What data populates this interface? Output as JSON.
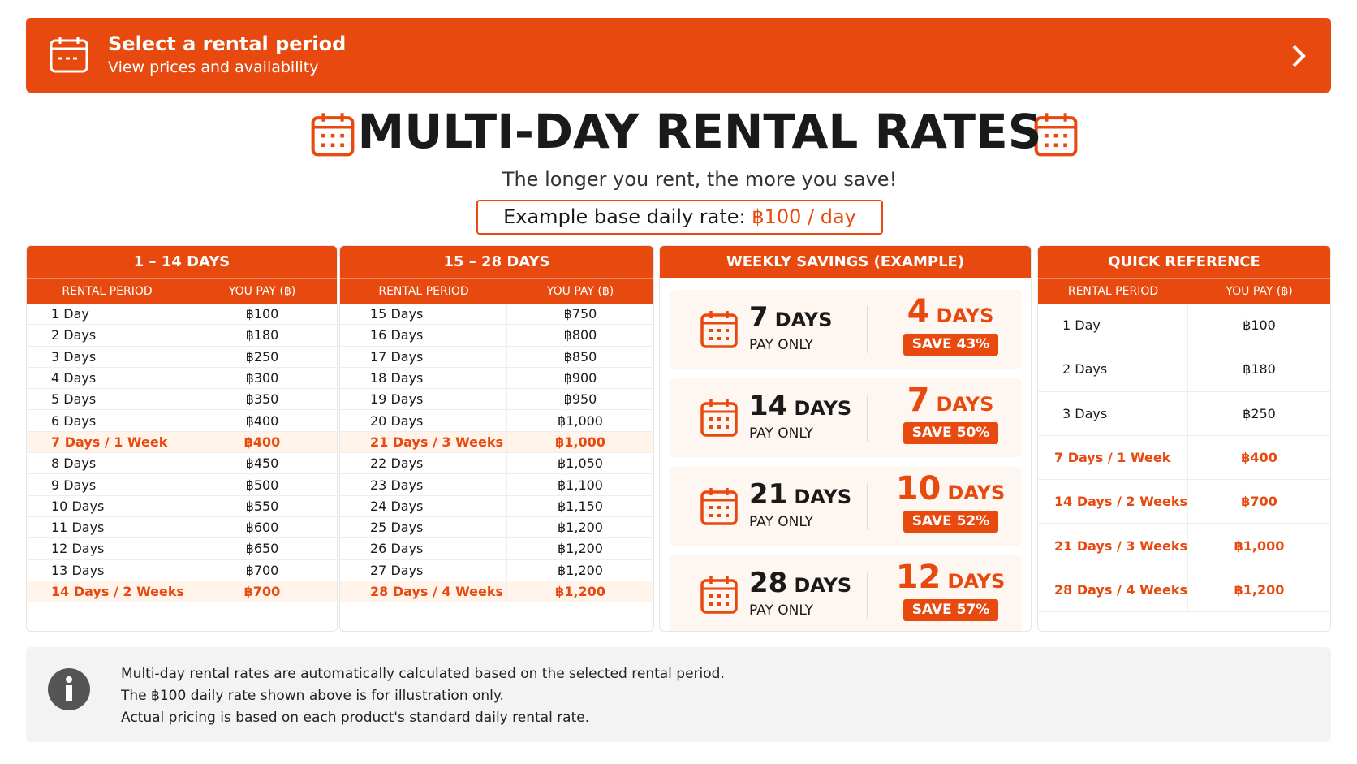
{
  "header": {
    "title": "Select a rental period",
    "subtitle": "View prices and availability"
  },
  "main": {
    "title": "MULTI-DAY RENTAL RATES",
    "subtitle": "The longer you rent, the more you save!",
    "example_label": "Example base daily rate:",
    "example_value": "฿100 / day"
  },
  "tables": [
    {
      "title": "1 – 14 DAYS",
      "columns": [
        "RENTAL PERIOD",
        "YOU PAY (฿)"
      ],
      "highlight": [
        6,
        13
      ],
      "rows": [
        [
          "1 Day",
          "฿100"
        ],
        [
          "2 Days",
          "฿180"
        ],
        [
          "3 Days",
          "฿250"
        ],
        [
          "4 Days",
          "฿300"
        ],
        [
          "5 Days",
          "฿350"
        ],
        [
          "6 Days",
          "฿400"
        ],
        [
          "7 Days / 1 Week",
          "฿400"
        ],
        [
          "8 Days",
          "฿450"
        ],
        [
          "9 Days",
          "฿500"
        ],
        [
          "10 Days",
          "฿550"
        ],
        [
          "11 Days",
          "฿600"
        ],
        [
          "12 Days",
          "฿650"
        ],
        [
          "13 Days",
          "฿700"
        ],
        [
          "14 Days / 2 Weeks",
          "฿700"
        ]
      ]
    },
    {
      "title": "15 – 28 DAYS",
      "columns": [
        "RENTAL PERIOD",
        "YOU PAY (฿)"
      ],
      "highlight": [
        6,
        13
      ],
      "rows": [
        [
          "15 Days",
          "฿750"
        ],
        [
          "16 Days",
          "฿800"
        ],
        [
          "17 Days",
          "฿850"
        ],
        [
          "18 Days",
          "฿900"
        ],
        [
          "19 Days",
          "฿950"
        ],
        [
          "20 Days",
          "฿1,000"
        ],
        [
          "21 Days / 3 Weeks",
          "฿1,000"
        ],
        [
          "22 Days",
          "฿1,050"
        ],
        [
          "23 Days",
          "฿1,100"
        ],
        [
          "24 Days",
          "฿1,150"
        ],
        [
          "25 Days",
          "฿1,200"
        ],
        [
          "26 Days",
          "฿1,200"
        ],
        [
          "27 Days",
          "฿1,200"
        ],
        [
          "28 Days / 4 Weeks",
          "฿1,200"
        ]
      ]
    }
  ],
  "weekly": {
    "title": "WEEKLY SAVINGS (EXAMPLE)",
    "cards": [
      {
        "rent": "7",
        "rent_unit": "DAYS",
        "pay_only": "PAY ONLY",
        "pay": "4",
        "pay_unit": "DAYS",
        "save": "SAVE 43%"
      },
      {
        "rent": "14",
        "rent_unit": "DAYS",
        "pay_only": "PAY ONLY",
        "pay": "7",
        "pay_unit": "DAYS",
        "save": "SAVE 50%"
      },
      {
        "rent": "21",
        "rent_unit": "DAYS",
        "pay_only": "PAY ONLY",
        "pay": "10",
        "pay_unit": "DAYS",
        "save": "SAVE 52%"
      },
      {
        "rent": "28",
        "rent_unit": "DAYS",
        "pay_only": "PAY ONLY",
        "pay": "12",
        "pay_unit": "DAYS",
        "save": "SAVE 57%"
      }
    ]
  },
  "quick": {
    "title": "QUICK REFERENCE",
    "columns": [
      "RENTAL PERIOD",
      "YOU PAY (฿)"
    ],
    "highlight": [
      3,
      4,
      5,
      6
    ],
    "rows": [
      [
        "1 Day",
        "฿100"
      ],
      [
        "2 Days",
        "฿180"
      ],
      [
        "3 Days",
        "฿250"
      ],
      [
        "7 Days / 1 Week",
        "฿400"
      ],
      [
        "14 Days / 2 Weeks",
        "฿700"
      ],
      [
        "21 Days / 3 Weeks",
        "฿1,000"
      ],
      [
        "28 Days / 4 Weeks",
        "฿1,200"
      ]
    ]
  },
  "info": {
    "lines": [
      "Multi-day rental rates are automatically calculated based on the selected rental period.",
      "The ฿100 daily rate shown above is for illustration only.",
      "Actual pricing is based on each product's standard daily rental rate."
    ]
  }
}
